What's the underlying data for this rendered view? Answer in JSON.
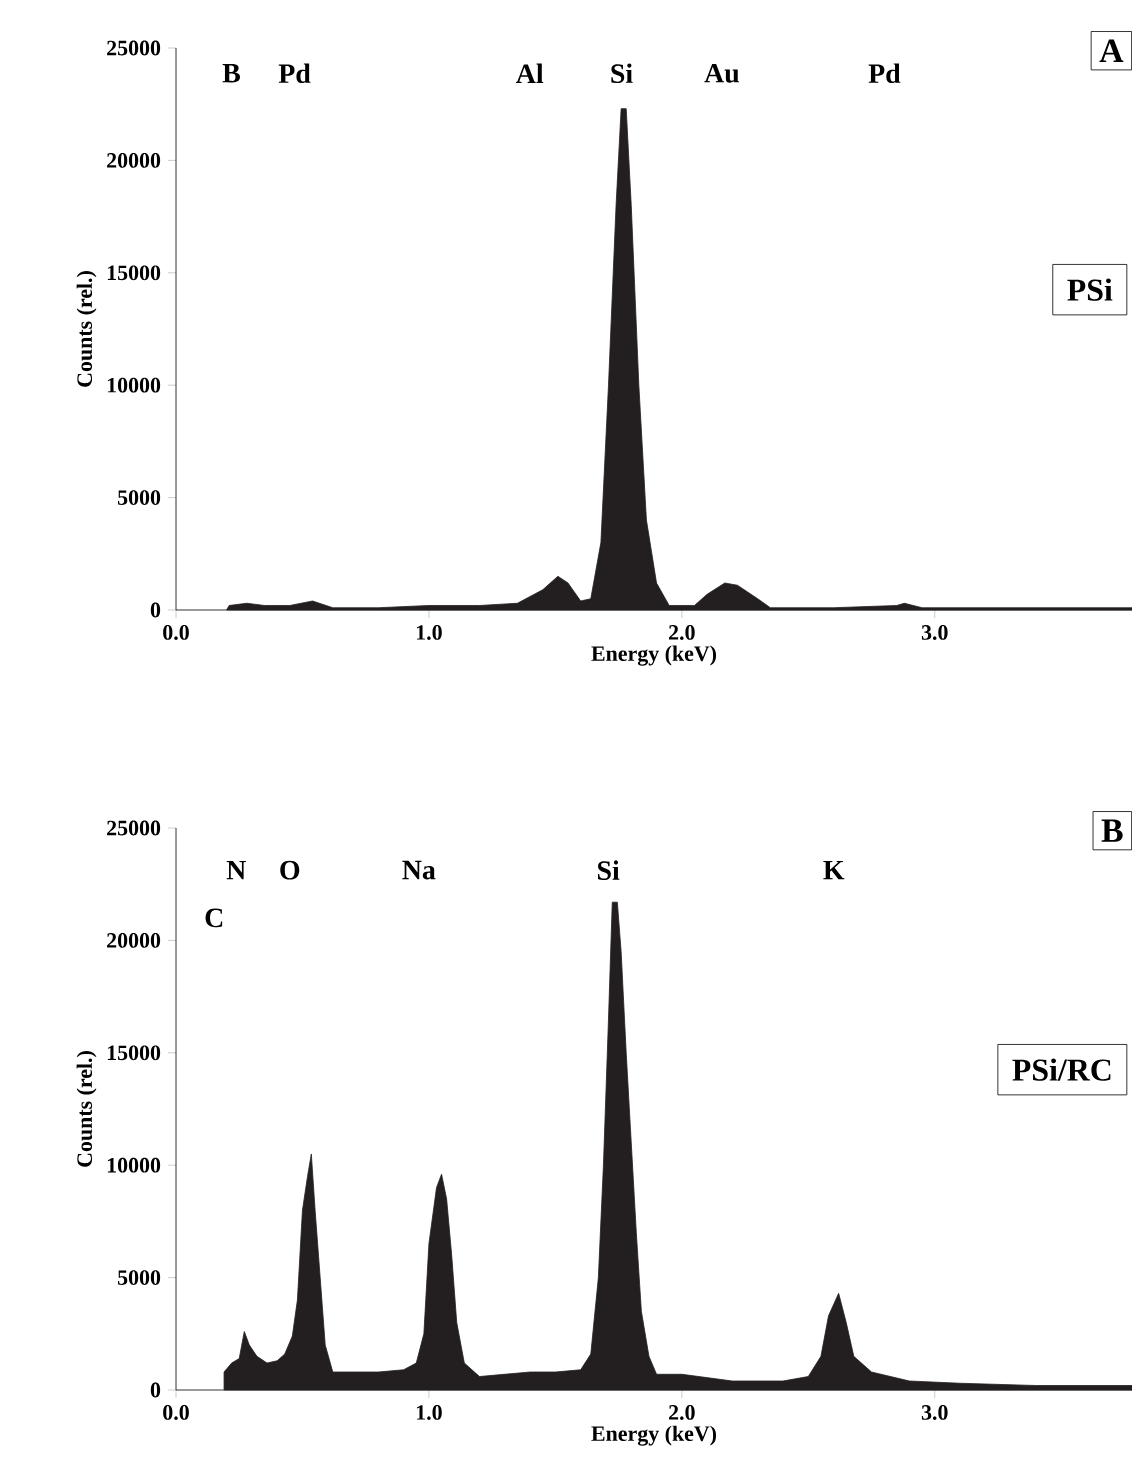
{
  "chart_data": [
    {
      "type": "area",
      "xlabel": "Energy (keV)",
      "ylabel": "Counts (rel.)",
      "color": "#231f20",
      "xlim": [
        0,
        3.78
      ],
      "ylim": [
        0,
        25000
      ],
      "xticks": [
        {
          "value": 0,
          "label": "0.0"
        },
        {
          "value": 1,
          "label": "1.0"
        },
        {
          "value": 2,
          "label": "2.0"
        },
        {
          "value": 3,
          "label": "3.0"
        }
      ],
      "yticks": [
        0,
        5000,
        10000,
        15000,
        20000,
        25000
      ],
      "x": [
        0.2,
        0.21,
        0.28,
        0.35,
        0.45,
        0.54,
        0.62,
        0.8,
        1.0,
        1.2,
        1.35,
        1.45,
        1.51,
        1.55,
        1.6,
        1.64,
        1.68,
        1.71,
        1.74,
        1.76,
        1.78,
        1.8,
        1.83,
        1.86,
        1.9,
        1.95,
        2.05,
        2.1,
        2.17,
        2.22,
        2.3,
        2.35,
        2.6,
        2.85,
        2.88,
        2.95,
        3.2,
        3.5,
        3.78
      ],
      "values": [
        0,
        200,
        300,
        200,
        200,
        400,
        100,
        100,
        200,
        200,
        300,
        900,
        1500,
        1200,
        400,
        500,
        3000,
        10000,
        18000,
        22300,
        22300,
        18000,
        10000,
        4000,
        1200,
        200,
        200,
        700,
        1200,
        1100,
        500,
        100,
        100,
        200,
        300,
        100,
        100,
        100,
        100
      ],
      "annotations": [
        "A",
        "PSi",
        "B",
        "Pd",
        "Al",
        "Si",
        "Au",
        "Pd"
      ]
    },
    {
      "type": "area",
      "xlabel": "Energy (keV)",
      "ylabel": "Counts (rel.)",
      "color": "#231f20",
      "xlim": [
        0,
        3.78
      ],
      "ylim": [
        0,
        25000
      ],
      "xticks": [
        {
          "value": 0,
          "label": "0.0"
        },
        {
          "value": 1,
          "label": "1.0"
        },
        {
          "value": 2,
          "label": "2.0"
        },
        {
          "value": 3,
          "label": "3.0"
        }
      ],
      "yticks": [
        0,
        5000,
        10000,
        15000,
        20000,
        25000
      ],
      "x": [
        0.19,
        0.22,
        0.25,
        0.27,
        0.29,
        0.32,
        0.36,
        0.4,
        0.43,
        0.46,
        0.48,
        0.5,
        0.52,
        0.535,
        0.55,
        0.57,
        0.59,
        0.62,
        0.7,
        0.8,
        0.9,
        0.95,
        0.98,
        1.0,
        1.03,
        1.05,
        1.07,
        1.09,
        1.11,
        1.14,
        1.2,
        1.3,
        1.4,
        1.5,
        1.6,
        1.64,
        1.67,
        1.69,
        1.71,
        1.725,
        1.745,
        1.76,
        1.78,
        1.8,
        1.82,
        1.84,
        1.87,
        1.9,
        2.0,
        2.2,
        2.4,
        2.5,
        2.55,
        2.58,
        2.62,
        2.65,
        2.68,
        2.75,
        2.9,
        3.1,
        3.4,
        3.78
      ],
      "values": [
        800,
        1200,
        1400,
        2600,
        2000,
        1500,
        1200,
        1300,
        1600,
        2400,
        4000,
        8000,
        9500,
        10500,
        8000,
        5000,
        2000,
        800,
        800,
        800,
        900,
        1200,
        2500,
        6500,
        9000,
        9600,
        8500,
        6000,
        3000,
        1200,
        600,
        700,
        800,
        800,
        900,
        1600,
        5000,
        10000,
        16500,
        21700,
        21700,
        19500,
        15000,
        11000,
        7000,
        3500,
        1500,
        700,
        700,
        400,
        400,
        600,
        1500,
        3300,
        4300,
        3000,
        1500,
        800,
        400,
        300,
        200,
        200
      ],
      "annotations": [
        "B",
        "PSi/RC",
        "C",
        "N",
        "O",
        "Na",
        "Si",
        "K"
      ]
    }
  ]
}
